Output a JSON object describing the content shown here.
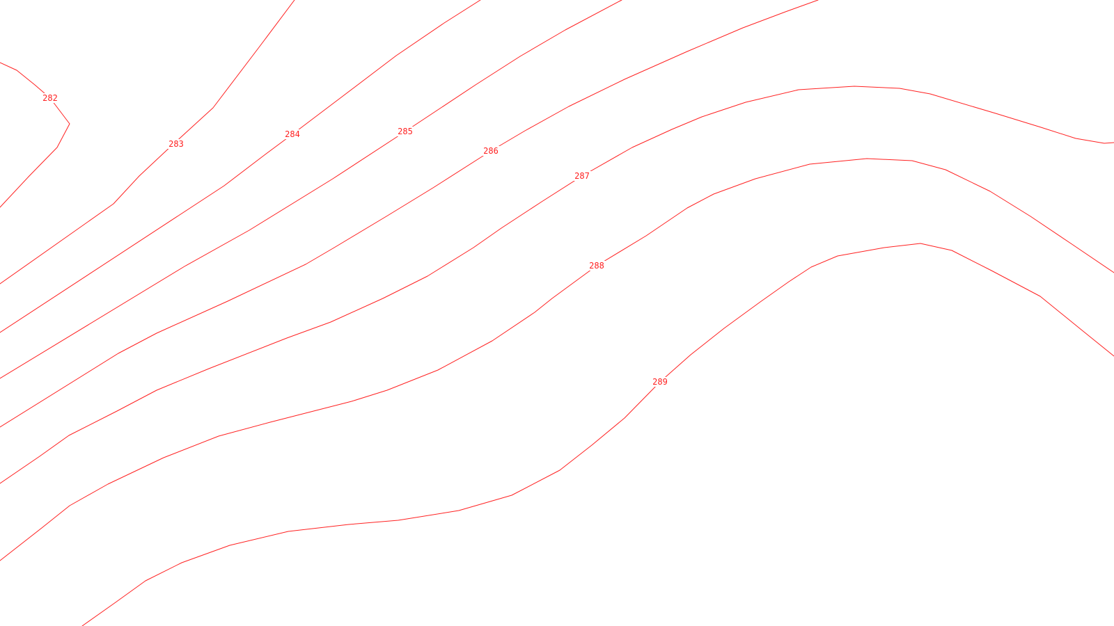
{
  "map": {
    "line_color": "#ff2020",
    "background": "#ffffff",
    "contours": [
      {
        "label": "282"
      },
      {
        "label": "283"
      },
      {
        "label": "284"
      },
      {
        "label": "285"
      },
      {
        "label": "286"
      },
      {
        "label": "287"
      },
      {
        "label": "288"
      },
      {
        "label": "289"
      }
    ]
  }
}
